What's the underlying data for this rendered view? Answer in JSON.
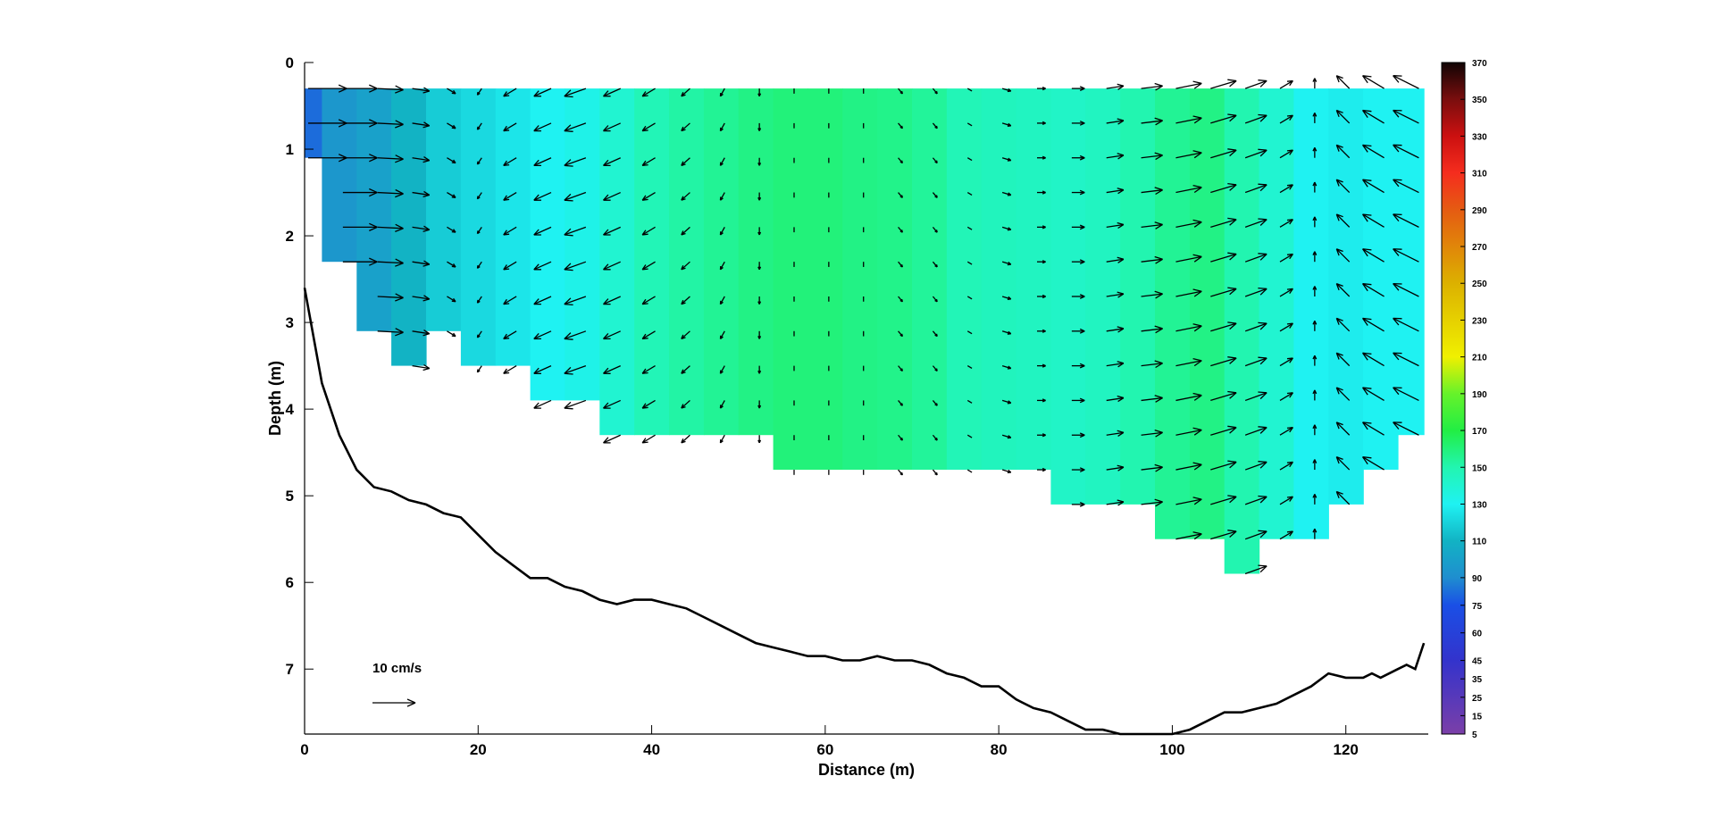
{
  "chart_data": {
    "type": "contour",
    "title": "",
    "xlabel": "Distance (m)",
    "ylabel": "Depth (m)",
    "xlim": [
      0,
      129.5
    ],
    "ylim": [
      0,
      7.75
    ],
    "y_reversed": true,
    "xticks": [
      "0",
      "20",
      "40",
      "60",
      "80",
      "100",
      "120"
    ],
    "yticks": [
      "0",
      "1",
      "2",
      "3",
      "4",
      "5",
      "6",
      "7"
    ],
    "colorbar": {
      "range": [
        5,
        370
      ],
      "ticks": [
        "5",
        "15",
        "25",
        "35",
        "45",
        "60",
        "75",
        "90",
        "110",
        "130",
        "150",
        "170",
        "190",
        "210",
        "230",
        "250",
        "270",
        "290",
        "310",
        "330",
        "350",
        "370"
      ]
    },
    "velocity_scale": {
      "label": "10 cm/s",
      "magnitude_cm_s": 10
    },
    "field_x": [
      0,
      4,
      8,
      12,
      16,
      20,
      24,
      28,
      32,
      36,
      40,
      44,
      48,
      52,
      56,
      60,
      64,
      68,
      72,
      76,
      80,
      84,
      88,
      92,
      96,
      100,
      104,
      108,
      112,
      116,
      120,
      124,
      128
    ],
    "field_values": [
      82,
      95,
      100,
      110,
      118,
      122,
      126,
      130,
      133,
      140,
      148,
      152,
      155,
      158,
      160,
      160,
      158,
      157,
      154,
      148,
      146,
      145,
      143,
      145,
      150,
      155,
      158,
      150,
      140,
      130,
      128,
      130,
      130
    ],
    "field_bottom_depth": [
      1.1,
      2.3,
      3.1,
      3.5,
      3.1,
      3.5,
      3.5,
      3.9,
      3.9,
      4.3,
      4.3,
      4.3,
      4.3,
      4.3,
      4.7,
      4.7,
      4.7,
      4.7,
      4.7,
      4.7,
      4.7,
      4.7,
      5.1,
      5.1,
      5.1,
      5.5,
      5.5,
      5.9,
      5.5,
      5.5,
      5.1,
      4.7,
      4.3
    ],
    "field_top_depth": 0.3,
    "bed_profile": {
      "x": [
        0,
        2,
        4,
        6,
        8,
        10,
        12,
        14,
        16,
        18,
        20,
        22,
        24,
        26,
        28,
        30,
        32,
        34,
        36,
        38,
        40,
        42,
        44,
        46,
        48,
        50,
        52,
        54,
        56,
        58,
        60,
        62,
        64,
        66,
        68,
        70,
        72,
        74,
        76,
        78,
        80,
        82,
        84,
        86,
        88,
        90,
        92,
        94,
        96,
        98,
        100,
        102,
        104,
        106,
        108,
        110,
        112,
        114,
        116,
        118,
        120,
        122,
        123,
        124,
        125,
        126,
        127,
        128,
        129
      ],
      "depth": [
        2.6,
        3.7,
        4.3,
        4.7,
        4.9,
        4.95,
        5.05,
        5.1,
        5.2,
        5.25,
        5.45,
        5.65,
        5.8,
        5.95,
        5.95,
        6.05,
        6.1,
        6.2,
        6.25,
        6.2,
        6.2,
        6.25,
        6.3,
        6.4,
        6.5,
        6.6,
        6.7,
        6.75,
        6.8,
        6.85,
        6.85,
        6.9,
        6.9,
        6.85,
        6.9,
        6.9,
        6.95,
        7.05,
        7.1,
        7.2,
        7.2,
        7.35,
        7.45,
        7.5,
        7.6,
        7.7,
        7.7,
        7.75,
        7.75,
        7.75,
        7.75,
        7.7,
        7.6,
        7.5,
        7.5,
        7.45,
        7.4,
        7.3,
        7.2,
        7.05,
        7.1,
        7.1,
        7.05,
        7.1,
        7.05,
        7.0,
        6.95,
        7.0,
        6.7
      ]
    },
    "arrow_columns_x": [
      0,
      4,
      8,
      12,
      16,
      20,
      24,
      28,
      32,
      36,
      40,
      44,
      48,
      52,
      56,
      60,
      64,
      68,
      72,
      76,
      80,
      84,
      88,
      92,
      96,
      100,
      104,
      108,
      112,
      116,
      120,
      124,
      128
    ],
    "arrow_u_cm_s": [
      9,
      8,
      6,
      4,
      2,
      -1,
      -3,
      -4,
      -5,
      -4,
      -3,
      -2,
      -1,
      0,
      0,
      0,
      0,
      1,
      1,
      1,
      2,
      2,
      3,
      4,
      5,
      6,
      6,
      5,
      3,
      0,
      -3,
      -5,
      -6
    ],
    "arrow_v_cm_s": [
      0,
      0,
      0.5,
      1,
      2,
      2.5,
      3,
      3,
      3,
      3,
      3,
      3,
      3,
      3,
      2,
      2,
      2,
      2,
      2,
      1,
      1,
      0,
      0,
      -1,
      -1,
      -2,
      -3,
      -3,
      -3,
      -4,
      -5,
      -5,
      -5
    ],
    "arrow_rows_depth": [
      0.3,
      0.7,
      1.1,
      1.5,
      1.9,
      2.3,
      2.7,
      3.1,
      3.5,
      3.9,
      4.3,
      4.7,
      5.1,
      5.5,
      5.9
    ]
  }
}
